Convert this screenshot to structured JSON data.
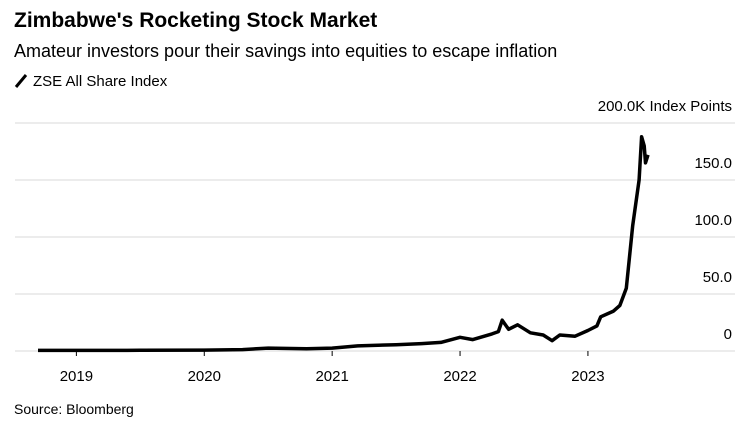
{
  "chart_data": {
    "type": "line",
    "title": "Zimbabwe's Rocketing Stock Market",
    "subtitle": "Amateur investors pour their savings into equities to escape inflation",
    "source": "Source: Bloomberg",
    "series": [
      {
        "name": "ZSE All Share Index",
        "color": "#000000",
        "x": [
          2018.7,
          2019.0,
          2019.5,
          2020.0,
          2020.3,
          2020.5,
          2020.8,
          2021.0,
          2021.2,
          2021.5,
          2021.7,
          2021.85,
          2022.0,
          2022.1,
          2022.25,
          2022.3,
          2022.33,
          2022.38,
          2022.45,
          2022.55,
          2022.65,
          2022.72,
          2022.78,
          2022.9,
          2023.0,
          2023.07,
          2023.1,
          2023.2,
          2023.25,
          2023.3,
          2023.35,
          2023.4,
          2023.42,
          2023.44,
          2023.45,
          2023.47
        ],
        "values": [
          0.5,
          0.5,
          0.6,
          0.8,
          1.2,
          2.5,
          2.0,
          2.5,
          4.5,
          5.5,
          6.5,
          7.5,
          12,
          10,
          15,
          17,
          27,
          19,
          23,
          16,
          14,
          9,
          14,
          13,
          18,
          22,
          30,
          35,
          40,
          55,
          110,
          150,
          188,
          180,
          165,
          172
        ]
      }
    ],
    "xlim": [
      2018.52,
      2024.15
    ],
    "xticks": [
      2019,
      2020,
      2021,
      2022,
      2023
    ],
    "ylim": [
      0,
      200
    ],
    "yticks": [
      0,
      {
        "value": 50,
        "label": "50.0"
      },
      {
        "value": 100,
        "label": "100.0"
      },
      {
        "value": 150,
        "label": "150.0"
      },
      {
        "value": 200,
        "label": "200.0K Index Points"
      }
    ],
    "grid": true
  }
}
